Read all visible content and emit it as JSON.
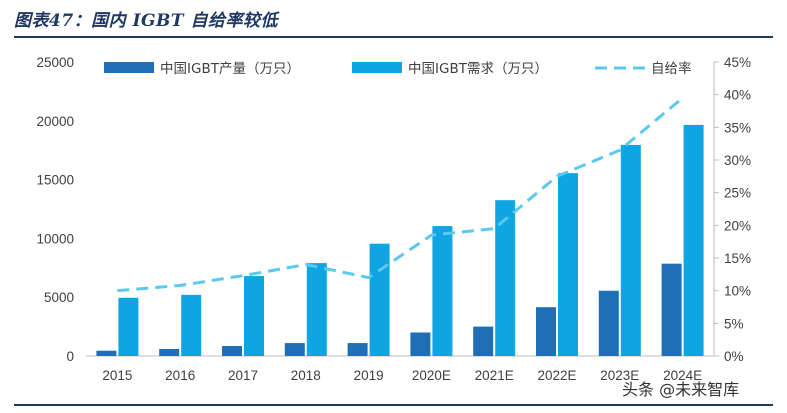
{
  "title": "图表47：国内 IGBT 自给率较低",
  "watermark": "头条 @未来智库",
  "chart_data": {
    "type": "bar",
    "title": "",
    "categories": [
      "2015",
      "2016",
      "2017",
      "2018",
      "2019",
      "2020E",
      "2021E",
      "2022E",
      "2023E",
      "2024E"
    ],
    "series": [
      {
        "name": "中国IGBT产量（万只）",
        "type": "bar",
        "axis": "left",
        "color": "#1f6fb6",
        "values": [
          450,
          600,
          850,
          1100,
          1100,
          2000,
          2500,
          4150,
          5550,
          7850
        ]
      },
      {
        "name": "中国IGBT需求（万只）",
        "type": "bar",
        "axis": "left",
        "color": "#0ea5e3",
        "values": [
          4950,
          5200,
          6800,
          7900,
          9550,
          11050,
          13250,
          15550,
          17950,
          19650
        ]
      },
      {
        "name": "自给率",
        "type": "line",
        "style": "dashed",
        "axis": "right",
        "color": "#5bc8f0",
        "values": [
          0.1,
          0.108,
          0.123,
          0.14,
          0.12,
          0.185,
          0.195,
          0.275,
          0.315,
          0.395
        ]
      }
    ],
    "y_left": {
      "ylim": [
        0,
        25000
      ],
      "ticks": [
        "0",
        "5000",
        "10000",
        "15000",
        "20000",
        "25000"
      ]
    },
    "y_right": {
      "ylim": [
        0,
        0.45
      ],
      "ticks": [
        "0%",
        "5%",
        "10%",
        "15%",
        "20%",
        "25%",
        "30%",
        "35%",
        "40%",
        "45%"
      ]
    },
    "legend": "top",
    "grid": false
  }
}
